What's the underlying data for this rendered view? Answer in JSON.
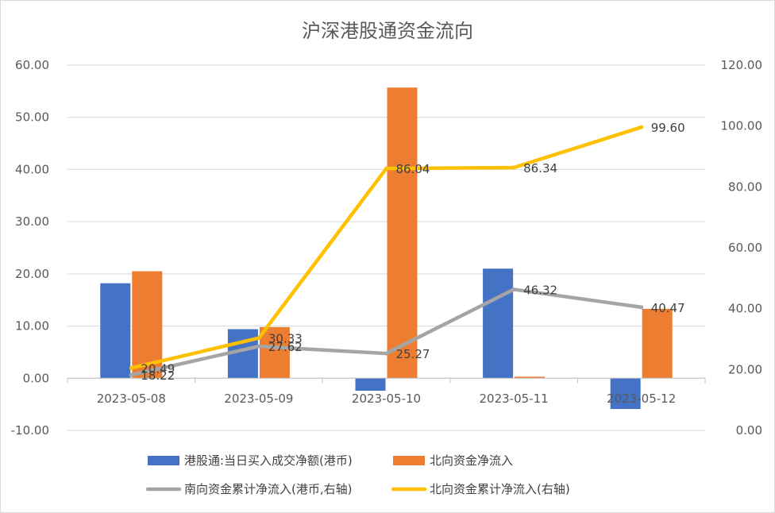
{
  "chart_data": {
    "type": "bar",
    "title": "沪深港股通资金流向",
    "categories": [
      "2023-05-08",
      "2023-05-09",
      "2023-05-10",
      "2023-05-11",
      "2023-05-12"
    ],
    "ylim_left": [
      -10,
      60
    ],
    "yticks_left": [
      "60.00",
      "50.00",
      "40.00",
      "30.00",
      "20.00",
      "10.00",
      "0.00",
      "-10.00"
    ],
    "ylim_right": [
      0,
      120
    ],
    "yticks_right": [
      "120.00",
      "100.00",
      "80.00",
      "60.00",
      "40.00",
      "20.00",
      "0.00"
    ],
    "grid": true,
    "legend_position": "bottom",
    "bar_series": [
      {
        "name": "港股通:当日买入成交净额(港币)",
        "color": "#4472C4",
        "values": [
          18.2,
          9.4,
          -2.4,
          21.0,
          -5.9
        ]
      },
      {
        "name": "北向资金净流入",
        "color": "#ED7D31",
        "values": [
          20.5,
          9.8,
          55.7,
          0.3,
          13.3
        ]
      }
    ],
    "line_series": [
      {
        "name": "南向资金累计净流入(港币,右轴)",
        "color": "#A5A5A5",
        "axis": "right",
        "values": [
          18.22,
          27.62,
          25.27,
          46.32,
          40.47
        ],
        "labels": [
          "18.22",
          "27.62",
          "25.27",
          "46.32",
          "40.47"
        ]
      },
      {
        "name": "北向资金累计净流入(右轴)",
        "color": "#FFC000",
        "axis": "right",
        "values": [
          20.49,
          30.33,
          86.04,
          86.34,
          99.6
        ],
        "labels": [
          "20.49",
          "30.33",
          "86.04",
          "86.34",
          "99.60"
        ]
      }
    ]
  }
}
